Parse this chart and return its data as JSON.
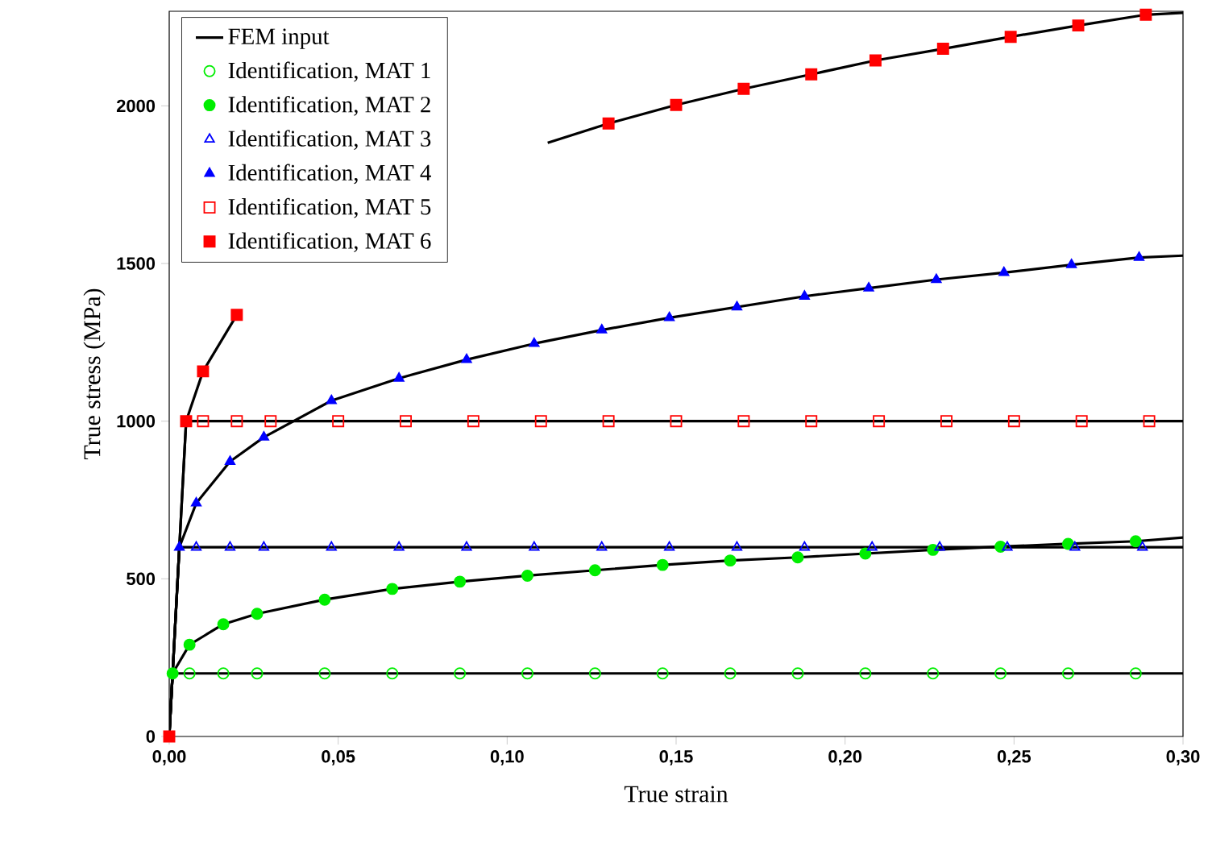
{
  "chart_data": {
    "type": "line",
    "xlabel": "True strain",
    "ylabel": "True stress (MPa)",
    "xlim": [
      0,
      0.3
    ],
    "ylim": [
      0,
      2300
    ],
    "xticks": [
      {
        "value": 0,
        "label": "0,00"
      },
      {
        "value": 0.05,
        "label": "0,05"
      },
      {
        "value": 0.1,
        "label": "0,10"
      },
      {
        "value": 0.15,
        "label": "0,15"
      },
      {
        "value": 0.2,
        "label": "0,20"
      },
      {
        "value": 0.25,
        "label": "0,25"
      },
      {
        "value": 0.3,
        "label": "0,30"
      }
    ],
    "yticks": [
      0,
      500,
      1000,
      1500,
      2000
    ],
    "legend": "top left",
    "grid": false,
    "series": [
      {
        "name": "FEM input",
        "color": "#000000",
        "marker": "none",
        "x": [
          0,
          0.001,
          0.3
        ],
        "values": [
          0,
          200,
          200
        ]
      },
      {
        "color": "#000000",
        "marker": "none",
        "x": [
          0,
          0.003,
          0.3
        ],
        "values": [
          0,
          600,
          600
        ]
      },
      {
        "color": "#000000",
        "marker": "none",
        "x": [
          0,
          0.005,
          0.3
        ],
        "values": [
          0,
          1000,
          1000
        ]
      },
      {
        "color": "#000000",
        "marker": "none",
        "x": [
          0,
          0.001,
          0.006,
          0.016,
          0.026,
          0.046,
          0.066,
          0.086,
          0.106,
          0.126,
          0.146,
          0.166,
          0.186,
          0.206,
          0.226,
          0.246,
          0.266,
          0.286,
          0.3
        ],
        "values": [
          0,
          200,
          291,
          356,
          389,
          434,
          468,
          491,
          510,
          527,
          544,
          558,
          568,
          580,
          592,
          602,
          611,
          619,
          631
        ]
      },
      {
        "color": "#000000",
        "marker": "none",
        "x": [
          0,
          0.003,
          0.008,
          0.018,
          0.028,
          0.048,
          0.068,
          0.088,
          0.108,
          0.128,
          0.148,
          0.168,
          0.188,
          0.207,
          0.227,
          0.247,
          0.267,
          0.287,
          0.3
        ],
        "values": [
          0,
          600,
          740,
          872,
          949,
          1065,
          1136,
          1195,
          1246,
          1289,
          1328,
          1362,
          1396,
          1422,
          1449,
          1471,
          1496,
          1519,
          1525
        ]
      },
      {
        "color": "#000000",
        "marker": "none",
        "x": [
          0,
          0.005,
          0.01,
          0.02,
          0.06,
          0.112,
          0.13,
          0.15,
          0.17,
          0.19,
          0.209,
          0.229,
          0.249,
          0.269,
          0.289,
          0.3
        ],
        "values": [
          0,
          1000,
          1158,
          1337,
          null,
          1883,
          1944,
          2003,
          2054,
          2100,
          2144,
          2181,
          2219,
          2255,
          2289,
          2295
        ]
      },
      {
        "name": "Identification, MAT 1",
        "type": "scatter",
        "color": "#00ee00",
        "marker": "circle open",
        "x": [
          0.006,
          0.016,
          0.026,
          0.046,
          0.066,
          0.086,
          0.106,
          0.126,
          0.146,
          0.166,
          0.186,
          0.206,
          0.226,
          0.246,
          0.266,
          0.286
        ],
        "values": [
          200,
          200,
          200,
          200,
          200,
          200,
          200,
          200,
          200,
          200,
          200,
          200,
          200,
          200,
          200,
          200
        ]
      },
      {
        "name": "Identification, MAT 2",
        "type": "scatter",
        "color": "#00ee00",
        "marker": "circle",
        "x": [
          0.001,
          0.006,
          0.016,
          0.026,
          0.046,
          0.066,
          0.086,
          0.106,
          0.126,
          0.146,
          0.166,
          0.186,
          0.206,
          0.226,
          0.246,
          0.266,
          0.286
        ],
        "values": [
          200,
          291,
          356,
          389,
          434,
          468,
          491,
          510,
          527,
          544,
          558,
          568,
          580,
          592,
          602,
          611,
          619
        ]
      },
      {
        "name": "Identification, MAT 3",
        "type": "scatter",
        "color": "#0000ff",
        "marker": "triangle open",
        "x": [
          0.008,
          0.018,
          0.028,
          0.048,
          0.068,
          0.088,
          0.108,
          0.128,
          0.148,
          0.168,
          0.188,
          0.208,
          0.228,
          0.248,
          0.268,
          0.288
        ],
        "values": [
          600,
          600,
          600,
          600,
          600,
          600,
          600,
          600,
          600,
          600,
          600,
          600,
          600,
          600,
          600,
          600
        ]
      },
      {
        "name": "Identification, MAT 4",
        "type": "scatter",
        "color": "#0000ff",
        "marker": "triangle",
        "x": [
          0.003,
          0.008,
          0.018,
          0.028,
          0.048,
          0.068,
          0.088,
          0.108,
          0.128,
          0.148,
          0.168,
          0.188,
          0.207,
          0.227,
          0.247,
          0.267,
          0.287
        ],
        "values": [
          600,
          740,
          872,
          949,
          1065,
          1136,
          1195,
          1246,
          1289,
          1328,
          1362,
          1396,
          1422,
          1449,
          1471,
          1496,
          1519
        ]
      },
      {
        "name": "Identification, MAT 5",
        "type": "scatter",
        "color": "#ff0000",
        "marker": "square open",
        "x": [
          0.01,
          0.02,
          0.03,
          0.05,
          0.07,
          0.09,
          0.11,
          0.13,
          0.15,
          0.17,
          0.19,
          0.21,
          0.23,
          0.25,
          0.27,
          0.29
        ],
        "values": [
          1000,
          1000,
          1000,
          1000,
          1000,
          1000,
          1000,
          1000,
          1000,
          1000,
          1000,
          1000,
          1000,
          1000,
          1000,
          1000
        ]
      },
      {
        "name": "Identification, MAT 6",
        "type": "scatter",
        "color": "#ff0000",
        "marker": "square",
        "x": [
          0,
          0.005,
          0.01,
          0.02,
          0.13,
          0.15,
          0.17,
          0.19,
          0.209,
          0.229,
          0.249,
          0.269,
          0.289
        ],
        "values": [
          0,
          1000,
          1158,
          1337,
          1944,
          2003,
          2054,
          2100,
          2144,
          2181,
          2219,
          2255,
          2289
        ]
      }
    ]
  }
}
